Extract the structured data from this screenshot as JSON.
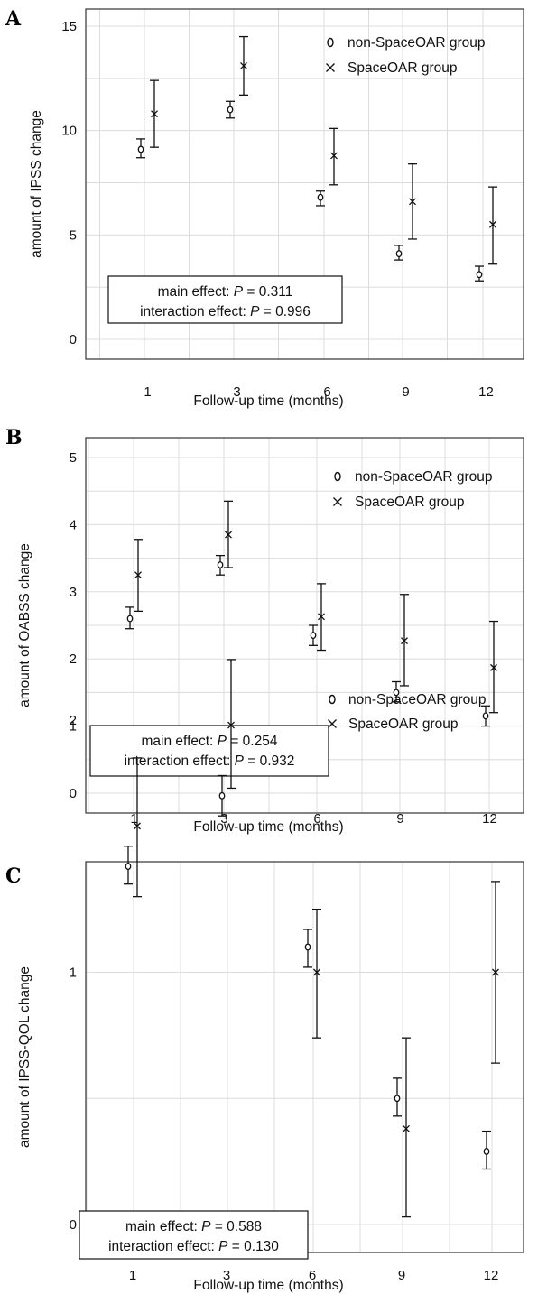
{
  "chart_data": [
    {
      "panel": "A",
      "type": "scatter",
      "categories": [
        "1",
        "3",
        "6",
        "9",
        "12"
      ],
      "xlabel": "Follow-up time (months)",
      "ylabel": "amount of IPSS change",
      "ylim": [
        -1,
        15.5
      ],
      "yticks": [
        0,
        5,
        10,
        15
      ],
      "legend": "top-right",
      "series": [
        {
          "name": "non-SpaceOAR group",
          "marker": "circle",
          "values": [
            9.1,
            11.0,
            6.8,
            4.1,
            3.1
          ],
          "lower": [
            8.7,
            10.6,
            6.4,
            3.8,
            2.8
          ],
          "upper": [
            9.6,
            11.4,
            7.1,
            4.5,
            3.5
          ]
        },
        {
          "name": "SpaceOAR group",
          "marker": "x",
          "values": [
            10.8,
            13.1,
            8.8,
            6.6,
            5.5
          ],
          "lower": [
            9.2,
            11.7,
            7.4,
            4.8,
            3.6
          ],
          "upper": [
            12.4,
            14.5,
            10.1,
            8.4,
            7.3
          ]
        }
      ],
      "stats": {
        "main_prefix": "main effect: ",
        "main_p": "P",
        "main_value": " = 0.311",
        "inter_prefix": "interaction effect: ",
        "inter_p": "P",
        "inter_value": " = 0.996"
      }
    },
    {
      "panel": "B",
      "type": "scatter",
      "categories": [
        "1",
        "3",
        "6",
        "9",
        "12"
      ],
      "xlabel": "Follow-up time (months)",
      "ylabel": "amount of OABSS change",
      "ylim": [
        -0.15,
        5.3
      ],
      "yticks": [
        0,
        1,
        2,
        3,
        4,
        5
      ],
      "legend": "top-right",
      "series": [
        {
          "name": "non-SpaceOAR group",
          "marker": "circle",
          "values": [
            2.6,
            3.4,
            2.35,
            1.5,
            1.15
          ],
          "lower": [
            2.45,
            3.25,
            2.2,
            1.36,
            1.0
          ],
          "upper": [
            2.77,
            3.54,
            2.5,
            1.66,
            1.3
          ]
        },
        {
          "name": "SpaceOAR group",
          "marker": "x",
          "values": [
            3.25,
            3.85,
            2.63,
            2.27,
            1.87
          ],
          "lower": [
            2.71,
            3.36,
            2.13,
            1.6,
            1.2
          ],
          "upper": [
            3.78,
            4.35,
            3.12,
            2.96,
            2.56
          ]
        }
      ],
      "stats": {
        "main_prefix": "main effect: ",
        "main_p": "P",
        "main_value": " = 0.254",
        "inter_prefix": "interaction effect: ",
        "inter_p": "P",
        "inter_value": " = 0.932"
      }
    },
    {
      "panel": "C",
      "type": "scatter",
      "categories": [
        "1",
        "3",
        "6",
        "9",
        "12"
      ],
      "xlabel": "Follow-up time (months)",
      "ylabel": "amount of IPSS-QOL change",
      "ylim": [
        -0.1,
        2.6
      ],
      "yticks": [
        0,
        1,
        2
      ],
      "legend": "top-right",
      "series": [
        {
          "name": "non-SpaceOAR group",
          "marker": "circle",
          "values": [
            1.42,
            1.7,
            1.1,
            0.5,
            0.29
          ],
          "lower": [
            1.35,
            1.62,
            1.02,
            0.43,
            0.22
          ],
          "upper": [
            1.5,
            1.78,
            1.17,
            0.58,
            0.37
          ]
        },
        {
          "name": "SpaceOAR group",
          "marker": "x",
          "values": [
            1.58,
            1.98,
            1.0,
            0.38,
            1.0
          ],
          "lower": [
            1.3,
            1.73,
            0.74,
            0.03,
            0.64
          ],
          "upper": [
            1.85,
            2.24,
            1.25,
            0.74,
            1.36
          ]
        }
      ],
      "stats": {
        "main_prefix": "main effect: ",
        "main_p": "P",
        "main_value": " = 0.588",
        "inter_prefix": "interaction effect: ",
        "inter_p": "P",
        "inter_value": " = 0.130"
      }
    }
  ]
}
